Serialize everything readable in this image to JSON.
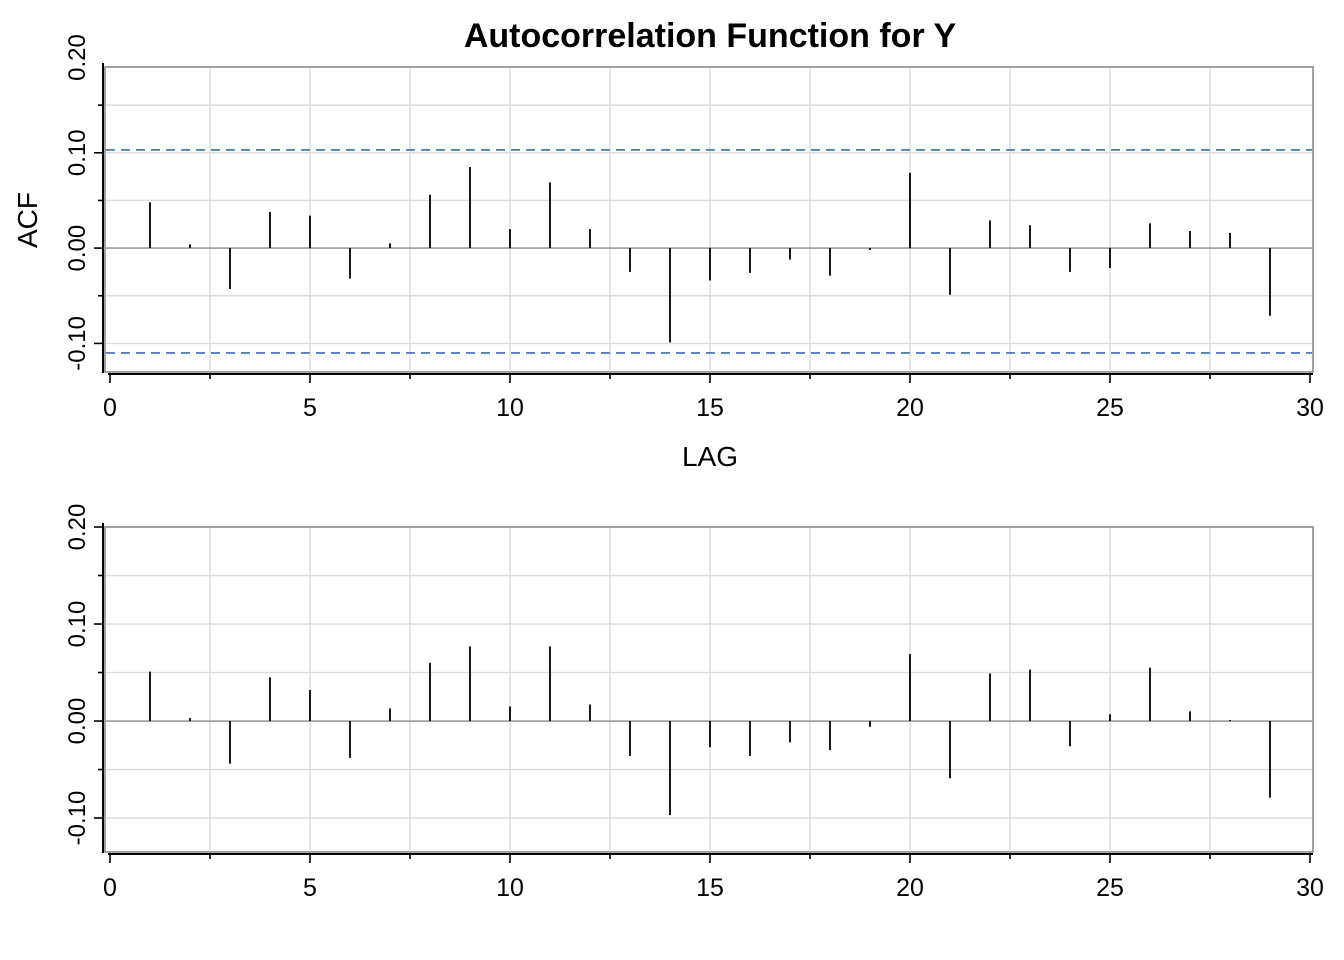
{
  "chart_data": [
    {
      "type": "bar",
      "title": "Autocorrelation Function for Y",
      "xlabel": "LAG",
      "ylabel": "ACF",
      "xlim": [
        0,
        30
      ],
      "ylim": [
        -0.13,
        0.19
      ],
      "xticks": [
        0,
        5,
        10,
        15,
        20,
        25,
        30
      ],
      "xtick_labels": [
        "0",
        "5",
        "10",
        "15",
        "20",
        "25",
        "30"
      ],
      "yticks": [
        -0.1,
        0.0,
        0.1,
        0.2
      ],
      "ytick_labels": [
        "-0.10",
        "0.00",
        "0.10",
        "0.20"
      ],
      "grid": true,
      "confidence_bounds": [
        0.103,
        -0.11
      ],
      "confidence_color": "#3a6fb0",
      "lags": [
        1,
        2,
        3,
        4,
        5,
        6,
        7,
        8,
        9,
        10,
        11,
        12,
        13,
        14,
        15,
        16,
        17,
        18,
        19,
        20,
        21,
        22,
        23,
        24,
        25,
        26,
        27,
        28,
        29
      ],
      "values": [
        0.048,
        0.004,
        -0.043,
        0.038,
        0.034,
        -0.032,
        0.005,
        0.056,
        0.085,
        0.02,
        0.069,
        0.02,
        -0.025,
        -0.099,
        -0.034,
        -0.026,
        -0.012,
        -0.029,
        -0.002,
        0.079,
        -0.049,
        0.029,
        0.024,
        -0.025,
        -0.021,
        0.026,
        0.018,
        0.016,
        -0.071
      ]
    },
    {
      "type": "bar",
      "title": "",
      "xlabel": "",
      "ylabel": "",
      "xlim": [
        0,
        30
      ],
      "ylim": [
        -0.135,
        0.2
      ],
      "xticks": [
        0,
        5,
        10,
        15,
        20,
        25,
        30
      ],
      "xtick_labels": [
        "0",
        "5",
        "10",
        "15",
        "20",
        "25",
        "30"
      ],
      "yticks": [
        -0.1,
        0.0,
        0.1,
        0.2
      ],
      "ytick_labels": [
        "-0.10",
        "0.00",
        "0.10",
        "0.20"
      ],
      "grid": true,
      "lags": [
        1,
        2,
        3,
        4,
        5,
        6,
        7,
        8,
        9,
        10,
        11,
        12,
        13,
        14,
        15,
        16,
        17,
        18,
        19,
        20,
        21,
        22,
        23,
        24,
        25,
        26,
        27,
        28,
        29
      ],
      "values": [
        0.051,
        0.003,
        -0.044,
        0.045,
        0.032,
        -0.038,
        0.013,
        0.06,
        0.077,
        0.015,
        0.077,
        0.017,
        -0.036,
        -0.097,
        -0.027,
        -0.036,
        -0.022,
        -0.03,
        -0.006,
        0.069,
        -0.059,
        0.049,
        0.053,
        -0.026,
        0.007,
        0.055,
        0.01,
        0.001,
        -0.079
      ]
    }
  ]
}
